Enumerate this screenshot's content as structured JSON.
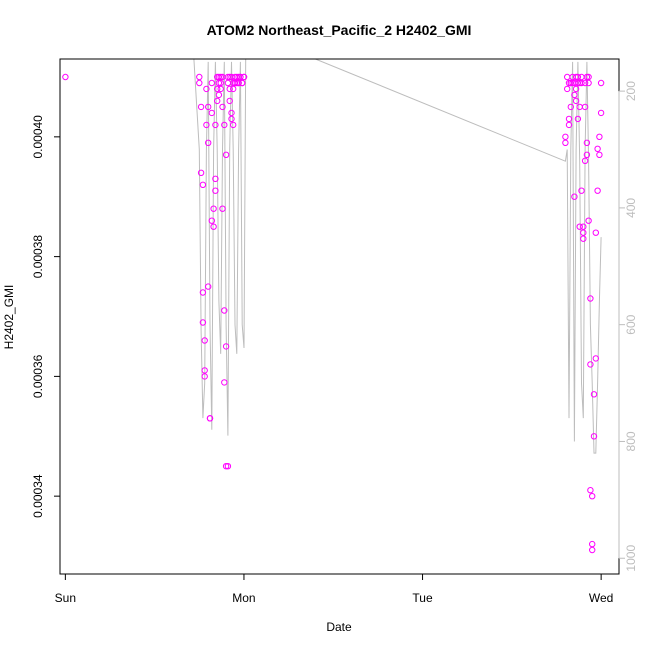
{
  "chart_data": {
    "type": "scatter",
    "title": "ATOM2 Northeast_Pacific_2 H2402_GMI",
    "xlabel": "Date",
    "ylabel": "H2402_GMI",
    "x_tick_labels": [
      "Sun",
      "Mon",
      "Tue",
      "Wed"
    ],
    "xlim_days": [
      -0.03,
      3.1
    ],
    "ylim": [
      0.000327,
      0.000413
    ],
    "y_ticks": [
      0.00034,
      0.00036,
      0.00038,
      0.0004
    ],
    "y_tick_labels": [
      "0.00034",
      "0.00036",
      "0.00038",
      "0.00040"
    ],
    "y2_axis": {
      "ticks": [
        200,
        400,
        600,
        800,
        1000
      ],
      "tick_labels": [
        "200",
        "400",
        "600",
        "800",
        "1000"
      ],
      "lim": [
        1027,
        145
      ],
      "color": "#bdbdbd"
    },
    "colors": {
      "points": "#ff00ff",
      "line": "#bdbdbd",
      "axis": "#000000"
    },
    "series": [
      {
        "kind": "points",
        "x": [
          0.0,
          0.75,
          0.75,
          0.76,
          0.76,
          0.77,
          0.77,
          0.77,
          0.78,
          0.78,
          0.78,
          0.79,
          0.79,
          0.8,
          0.8,
          0.8,
          0.81,
          0.81,
          0.82,
          0.82,
          0.82,
          0.83,
          0.83,
          0.84,
          0.84,
          0.84,
          0.85,
          0.85,
          0.85,
          0.86,
          0.86,
          0.86,
          0.87,
          0.87,
          0.87,
          0.88,
          0.88,
          0.88,
          0.89,
          0.89,
          0.89,
          0.9,
          0.9,
          0.9,
          0.91,
          0.91,
          0.91,
          0.92,
          0.92,
          0.92,
          0.93,
          0.93,
          0.93,
          0.94,
          0.94,
          0.94,
          0.95,
          0.95,
          0.95,
          0.96,
          0.96,
          0.97,
          0.97,
          0.97,
          0.98,
          0.98,
          0.99,
          0.99,
          1.0,
          1.0,
          2.8,
          2.8,
          2.81,
          2.81,
          2.82,
          2.82,
          2.82,
          2.83,
          2.83,
          2.83,
          2.84,
          2.84,
          2.85,
          2.85,
          2.85,
          2.86,
          2.86,
          2.86,
          2.87,
          2.87,
          2.87,
          2.88,
          2.88,
          2.88,
          2.89,
          2.89,
          2.89,
          2.9,
          2.9,
          2.9,
          2.91,
          2.91,
          2.91,
          2.92,
          2.92,
          2.92,
          2.93,
          2.93,
          2.93,
          2.94,
          2.94,
          2.94,
          2.95,
          2.95,
          2.95,
          2.96,
          2.96,
          2.97,
          2.97,
          2.98,
          2.98,
          2.99,
          2.99,
          3.0,
          3.0
        ],
        "y": [
          0.00041,
          0.00041,
          0.000409,
          0.000405,
          0.000394,
          0.000392,
          0.000374,
          0.000369,
          0.000366,
          0.000361,
          0.00036,
          0.000408,
          0.000402,
          0.000405,
          0.000399,
          0.000375,
          0.000353,
          0.000353,
          0.000409,
          0.000404,
          0.000386,
          0.000385,
          0.000388,
          0.000391,
          0.000393,
          0.000402,
          0.00041,
          0.000408,
          0.000406,
          0.00041,
          0.000409,
          0.000407,
          0.00041,
          0.000409,
          0.000408,
          0.00041,
          0.000405,
          0.000388,
          0.000402,
          0.000371,
          0.000359,
          0.000397,
          0.000365,
          0.000345,
          0.000345,
          0.00041,
          0.000409,
          0.00041,
          0.000408,
          0.000406,
          0.00041,
          0.000404,
          0.000403,
          0.000409,
          0.000408,
          0.000402,
          0.00041,
          0.000409,
          0.000409,
          0.00041,
          0.000409,
          0.00041,
          0.000409,
          0.000409,
          0.00041,
          0.00041,
          0.000409,
          0.000409,
          0.00041,
          0.00041,
          0.0004,
          0.000399,
          0.00041,
          0.000408,
          0.000409,
          0.000403,
          0.000402,
          0.000409,
          0.000409,
          0.000405,
          0.00041,
          0.000409,
          0.00039,
          0.000409,
          0.000407,
          0.00041,
          0.000408,
          0.000406,
          0.00041,
          0.000409,
          0.000403,
          0.000409,
          0.000405,
          0.000385,
          0.00041,
          0.000409,
          0.000391,
          0.000383,
          0.000385,
          0.000384,
          0.000409,
          0.000405,
          0.000396,
          0.00041,
          0.000399,
          0.000397,
          0.00041,
          0.000409,
          0.000386,
          0.000373,
          0.000362,
          0.000341,
          0.000332,
          0.000331,
          0.00034,
          0.000357,
          0.00035,
          0.000363,
          0.000384,
          0.000391,
          0.000398,
          0.0004,
          0.000397,
          0.000404,
          0.000409
        ]
      },
      {
        "kind": "line",
        "y2_units": true,
        "x": [
          0.72,
          0.75,
          0.76,
          0.77,
          0.78,
          0.79,
          0.8,
          0.81,
          0.82,
          0.83,
          0.84,
          0.85,
          0.86,
          0.87,
          0.88,
          0.89,
          0.9,
          0.91,
          0.92,
          0.93,
          0.94,
          0.95,
          0.96,
          0.97,
          0.98,
          0.99,
          1.0,
          1.01,
          1.4,
          2.8,
          2.81,
          2.82,
          2.83,
          2.84,
          2.85,
          2.86,
          2.87,
          2.88,
          2.89,
          2.9,
          2.91,
          2.92,
          2.93,
          2.94,
          2.95,
          2.96,
          2.97,
          2.98,
          2.99,
          3.0
        ],
        "y": [
          145,
          300,
          610,
          760,
          700,
          300,
          150,
          600,
          780,
          300,
          150,
          300,
          560,
          650,
          300,
          150,
          600,
          790,
          300,
          150,
          300,
          600,
          650,
          300,
          150,
          600,
          640,
          145,
          145,
          320,
          300,
          760,
          300,
          150,
          800,
          300,
          150,
          320,
          700,
          760,
          300,
          150,
          320,
          600,
          700,
          820,
          820,
          700,
          560,
          450
        ]
      }
    ],
    "grid": false,
    "legend": "none"
  }
}
